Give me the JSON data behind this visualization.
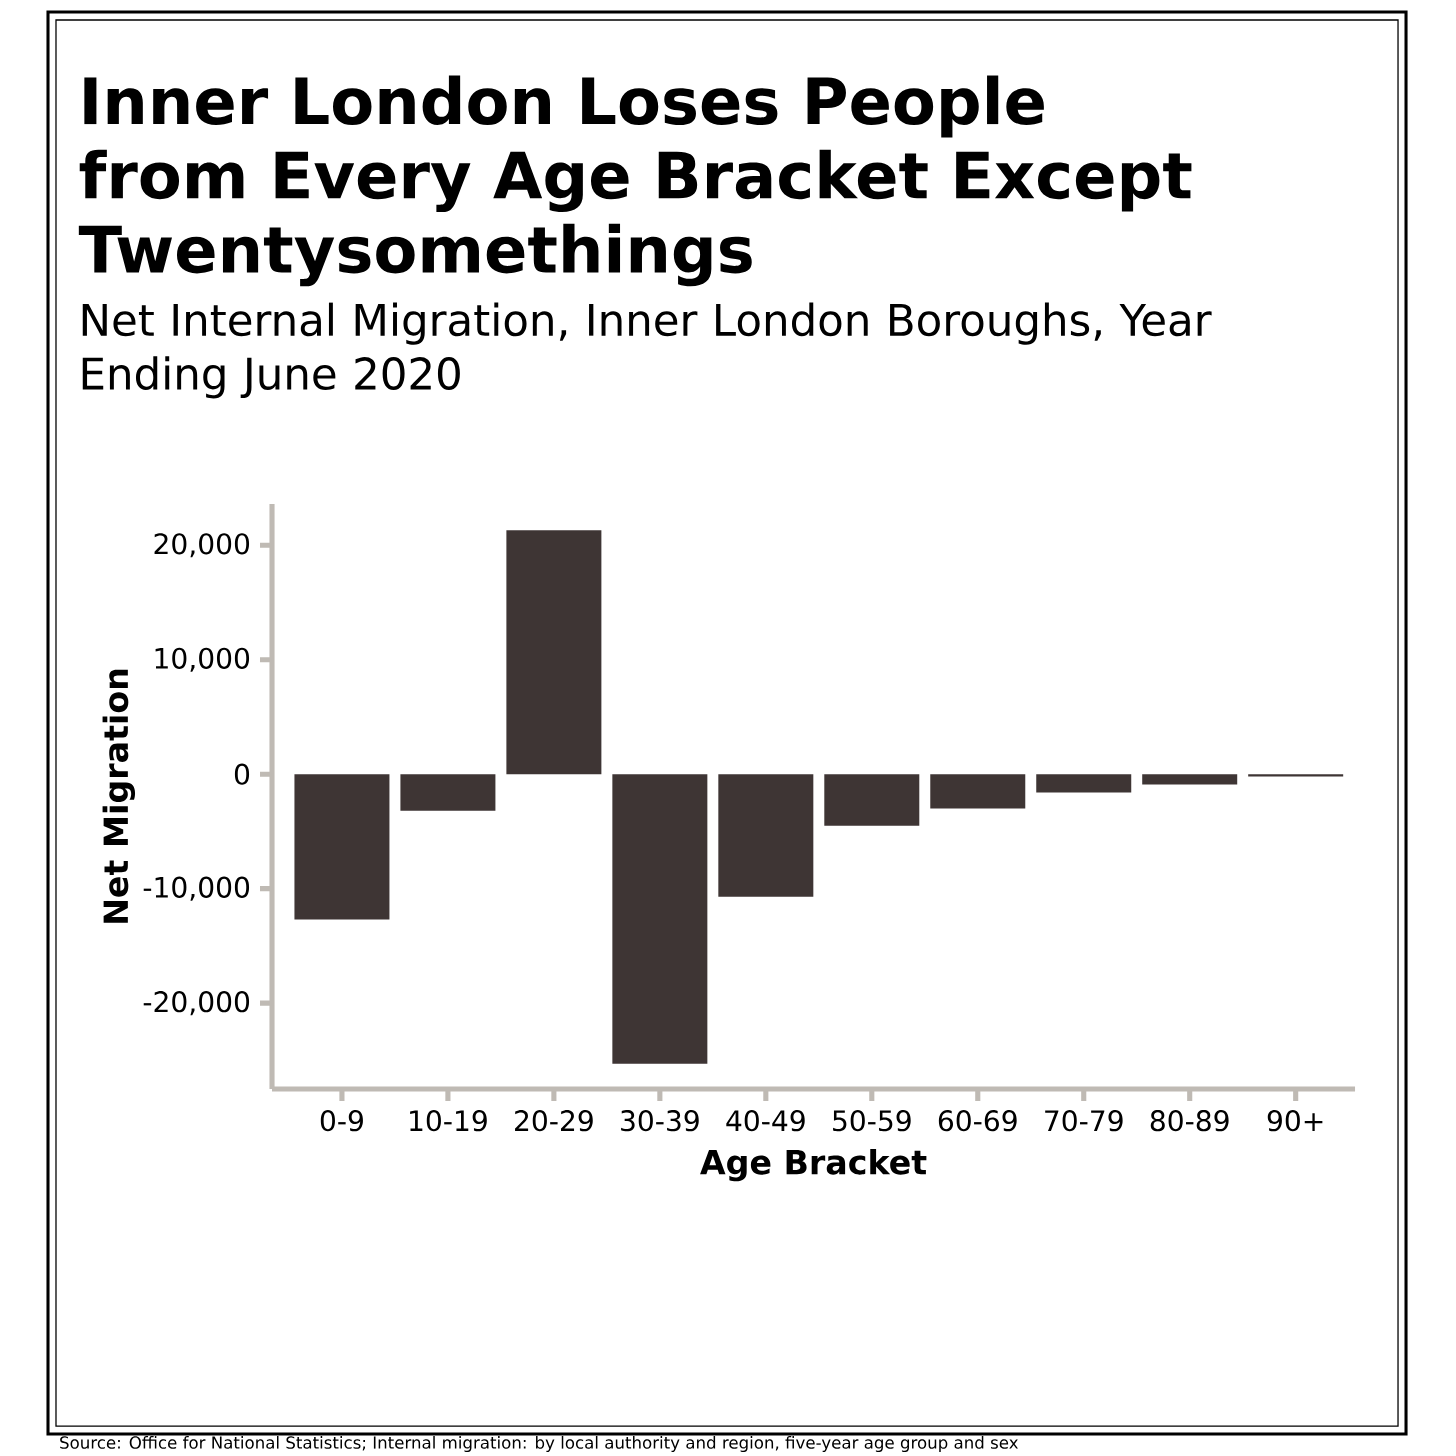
{
  "chart_data": {
    "type": "bar",
    "title": "Inner London Loses People from Every Age Bracket Except Twentysomethings",
    "subtitle": "Net Internal Migration, Inner London Boroughs, Year Ending June 2020",
    "xlabel": "Age Bracket",
    "ylabel": "Net Migration",
    "categories": [
      "0-9",
      "10-19",
      "20-29",
      "30-39",
      "40-49",
      "50-59",
      "60-69",
      "70-79",
      "80-89",
      "90+"
    ],
    "values": [
      -12700,
      -3200,
      21300,
      -25300,
      -10700,
      -4500,
      -3000,
      -1600,
      -900,
      -200
    ],
    "color": "#3e3534",
    "ylim": [
      -27500,
      23600
    ],
    "yticks": [
      {
        "value": -20000,
        "label": "-20,000"
      },
      {
        "value": -10000,
        "label": "-10,000"
      },
      {
        "value": 0,
        "label": "0"
      },
      {
        "value": 10000,
        "label": "10,000"
      },
      {
        "value": 20000,
        "label": "20,000"
      }
    ],
    "grid": false,
    "annotations": [
      "Source: Office for National Statistics; Internal migration: by local authority and region, five-year age group and sex"
    ]
  }
}
